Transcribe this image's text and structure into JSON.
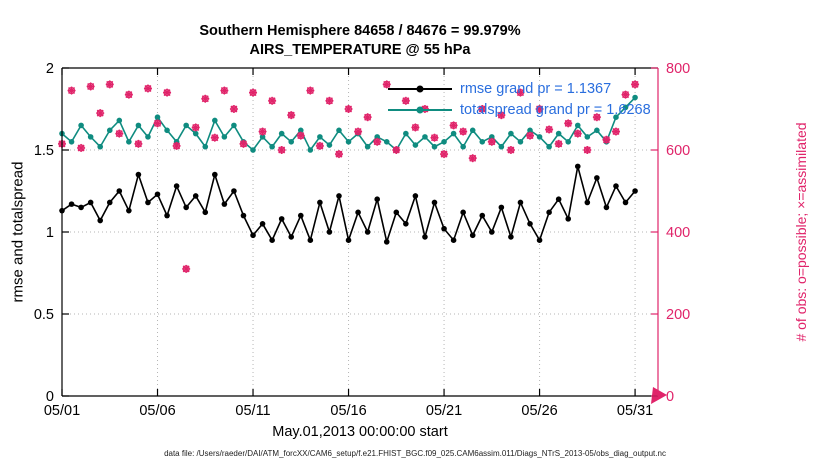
{
  "title": {
    "line1": "Southern Hemisphere 84658 / 84676 = 99.979%",
    "line2": "AIRS_TEMPERATURE @ 55 hPa"
  },
  "footer": "data file: /Users/raeder/DAI/ATM_forcXX/CAM6_setup/f.e21.FHIST_BGC.f09_025.CAM6assim.011/Diags_NTrS_2013-05/obs_diag_output.nc",
  "colors": {
    "rmse_line": "#000000",
    "totalspread_line": "#0f8c80",
    "obs_markers": "#e0246a",
    "right_axis": "#e0246a",
    "legend_text": "#2a6ede",
    "grid": "#b5b5b5",
    "axis": "#000000"
  },
  "chart_data": {
    "type": "line",
    "title": "Southern Hemisphere 84658 / 84676 = 99.979% — AIRS_TEMPERATURE @ 55 hPa",
    "xlabel": "May.01,2013 00:00:00 start",
    "ylabel_left": "rmse and totalspread",
    "ylabel_right": "# of obs: o=possible; ×=assimilated",
    "xlim": [
      1,
      32.2
    ],
    "ylim_left": [
      0,
      2
    ],
    "ylim_right": [
      0,
      800
    ],
    "grid": true,
    "legend_position": "top-center-inside",
    "x_ticks": [
      "05/01",
      "05/06",
      "05/11",
      "05/16",
      "05/21",
      "05/26",
      "05/31"
    ],
    "x_tick_values": [
      1,
      6,
      11,
      16,
      21,
      26,
      31
    ],
    "y_ticks_left": [
      "0",
      "0.5",
      "1",
      "1.5",
      "2"
    ],
    "y_tick_values_left": [
      0,
      0.5,
      1,
      1.5,
      2
    ],
    "y_ticks_right": [
      "0",
      "200",
      "400",
      "600",
      "800"
    ],
    "y_tick_values_right": [
      0,
      200,
      400,
      600,
      800
    ],
    "legend": [
      {
        "label": "rmse grand pr = 1.1367",
        "color": "#000000"
      },
      {
        "label": "totalspread grand pr = 1.6268",
        "color": "#0f8c80"
      }
    ],
    "x": [
      1,
      1.5,
      2,
      2.5,
      3,
      3.5,
      4,
      4.5,
      5,
      5.5,
      6,
      6.5,
      7,
      7.5,
      8,
      8.5,
      9,
      9.5,
      10,
      10.5,
      11,
      11.5,
      12,
      12.5,
      13,
      13.5,
      14,
      14.5,
      15,
      15.5,
      16,
      16.5,
      17,
      17.5,
      18,
      18.5,
      19,
      19.5,
      20,
      20.5,
      21,
      21.5,
      22,
      22.5,
      23,
      23.5,
      24,
      24.5,
      25,
      25.5,
      26,
      26.5,
      27,
      27.5,
      28,
      28.5,
      29,
      29.5,
      30,
      30.5,
      31
    ],
    "series": [
      {
        "name": "rmse",
        "axis": "left",
        "color": "#000000",
        "values": [
          1.13,
          1.17,
          1.15,
          1.18,
          1.07,
          1.18,
          1.25,
          1.13,
          1.35,
          1.18,
          1.23,
          1.1,
          1.28,
          1.15,
          1.22,
          1.12,
          1.35,
          1.17,
          1.25,
          1.1,
          0.98,
          1.05,
          0.95,
          1.08,
          0.97,
          1.1,
          0.95,
          1.18,
          1.0,
          1.22,
          0.95,
          1.12,
          1.0,
          1.2,
          0.94,
          1.12,
          1.05,
          1.22,
          0.97,
          1.18,
          1.02,
          0.95,
          1.12,
          0.98,
          1.1,
          1.0,
          1.15,
          0.97,
          1.18,
          1.05,
          0.95,
          1.12,
          1.2,
          1.08,
          1.4,
          1.18,
          1.33,
          1.15,
          1.28,
          1.18,
          1.25
        ]
      },
      {
        "name": "totalspread",
        "axis": "left",
        "color": "#0f8c80",
        "values": [
          1.6,
          1.55,
          1.65,
          1.58,
          1.52,
          1.62,
          1.68,
          1.55,
          1.65,
          1.58,
          1.7,
          1.62,
          1.55,
          1.65,
          1.6,
          1.52,
          1.68,
          1.58,
          1.65,
          1.55,
          1.5,
          1.58,
          1.52,
          1.6,
          1.55,
          1.62,
          1.5,
          1.58,
          1.53,
          1.62,
          1.55,
          1.6,
          1.52,
          1.58,
          1.55,
          1.5,
          1.6,
          1.53,
          1.58,
          1.52,
          1.55,
          1.6,
          1.52,
          1.62,
          1.55,
          1.58,
          1.52,
          1.6,
          1.55,
          1.62,
          1.58,
          1.52,
          1.6,
          1.55,
          1.65,
          1.58,
          1.62,
          1.55,
          1.7,
          1.76,
          1.82
        ]
      }
    ],
    "obs_counts": {
      "name": "# of obs (possible ≈ assimilated)",
      "axis": "right",
      "marker": "asterisk-and-circle",
      "color": "#e0246a",
      "values": [
        615,
        745,
        605,
        755,
        690,
        760,
        640,
        735,
        615,
        750,
        665,
        740,
        610,
        310,
        655,
        725,
        630,
        745,
        700,
        615,
        740,
        645,
        720,
        600,
        685,
        635,
        745,
        610,
        720,
        590,
        700,
        645,
        680,
        620,
        760,
        600,
        720,
        655,
        700,
        630,
        590,
        660,
        645,
        580,
        700,
        620,
        685,
        600,
        740,
        635,
        700,
        650,
        615,
        665,
        640,
        600,
        680,
        625,
        645,
        735,
        760
      ]
    },
    "offscale_marker": {
      "x": 31.6,
      "value": 0,
      "note": "pink arrow at bottom-right corner"
    }
  }
}
